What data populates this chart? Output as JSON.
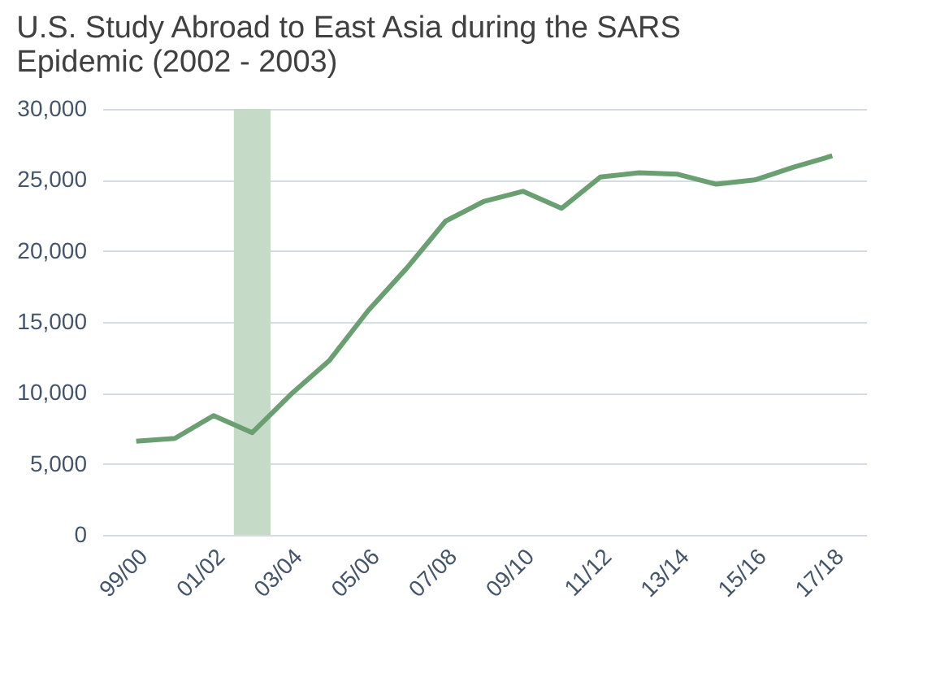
{
  "chart_data": {
    "type": "line",
    "title": "U.S. Study Abroad to East Asia during the SARS Epidemic (2002 - 2003)",
    "categories": [
      "99/00",
      null,
      "01/02",
      null,
      "03/04",
      null,
      "05/06",
      null,
      "07/08",
      null,
      "09/10",
      null,
      "11/12",
      null,
      "13/14",
      null,
      "15/16",
      null,
      "17/18"
    ],
    "series": [
      {
        "type": "bar",
        "color": "#c5dbc8",
        "values": [
          null,
          null,
          null,
          30000,
          null,
          null,
          null,
          null,
          null,
          null,
          null,
          null,
          null,
          null,
          null,
          null,
          null,
          null,
          null
        ]
      },
      {
        "color": "#6a9f71",
        "values": [
          6600,
          6800,
          8400,
          7200,
          9900,
          12300,
          15800,
          18800,
          22100,
          23500,
          24200,
          23000,
          25200,
          25500,
          25400,
          24700,
          25000,
          25900,
          26700
        ]
      }
    ],
    "ylim": [
      0,
      30000
    ],
    "yticks": [
      0,
      {
        "value": 5000,
        "label": "5,000"
      },
      {
        "value": 10000,
        "label": "10,000"
      },
      {
        "value": 15000,
        "label": "15,000"
      },
      {
        "value": 20000,
        "label": "20,000"
      },
      {
        "value": 25000,
        "label": "25,000"
      },
      {
        "value": 30000,
        "label": "30,000"
      }
    ],
    "grid": "y",
    "marker": "none",
    "line_style": "solid"
  }
}
